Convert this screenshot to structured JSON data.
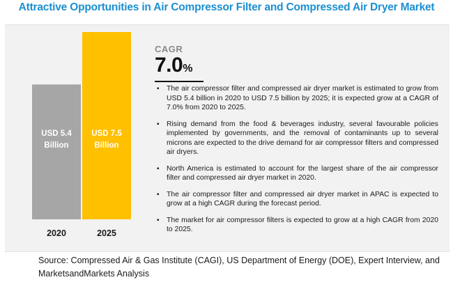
{
  "header": {
    "title": "Attractive Opportunities in Air Compressor Filter and Compressed Air Dryer Market"
  },
  "cagr": {
    "label": "CAGR",
    "value": "7.0",
    "unit": "%"
  },
  "bullets": [
    "The air compressor filter and compressed air dryer market is estimated to grow from USD 5.4 billion in 2020 to USD 7.5 billion by 2025; it is expected grow at a CAGR of 7.0% from 2020 to 2025.",
    "Rising demand from the food & beverages industry, several favourable policies implemented by governments, and the removal of contaminants up to several microns are expected to the drive demand for air compressor filters and compressed air dryers.",
    "North America is estimated to account for the largest share of the air compressor filter and compressed air dryer market in 2020.",
    "The air compressor filter and compressed air dryer market in APAC is expected to grow at a high CAGR during the forecast period.",
    "The market for air compressor filters is expected to grow at a high CAGR from 2020 to 2025."
  ],
  "source": "Source: Compressed Air & Gas Institute (CAGI), US Department of Energy (DOE), Expert Interview, and MarketsandMarkets Analysis",
  "chart_data": {
    "type": "bar",
    "categories": [
      "2020",
      "2025"
    ],
    "values": [
      5.4,
      7.5
    ],
    "data_labels": [
      [
        "USD 5.4",
        "Billion"
      ],
      [
        "USD 7.5",
        "Billion"
      ]
    ],
    "colors": [
      "#a6a6a6",
      "#ffc000"
    ],
    "ylim": [
      0,
      7.5
    ],
    "grid": false,
    "legend": "none"
  }
}
